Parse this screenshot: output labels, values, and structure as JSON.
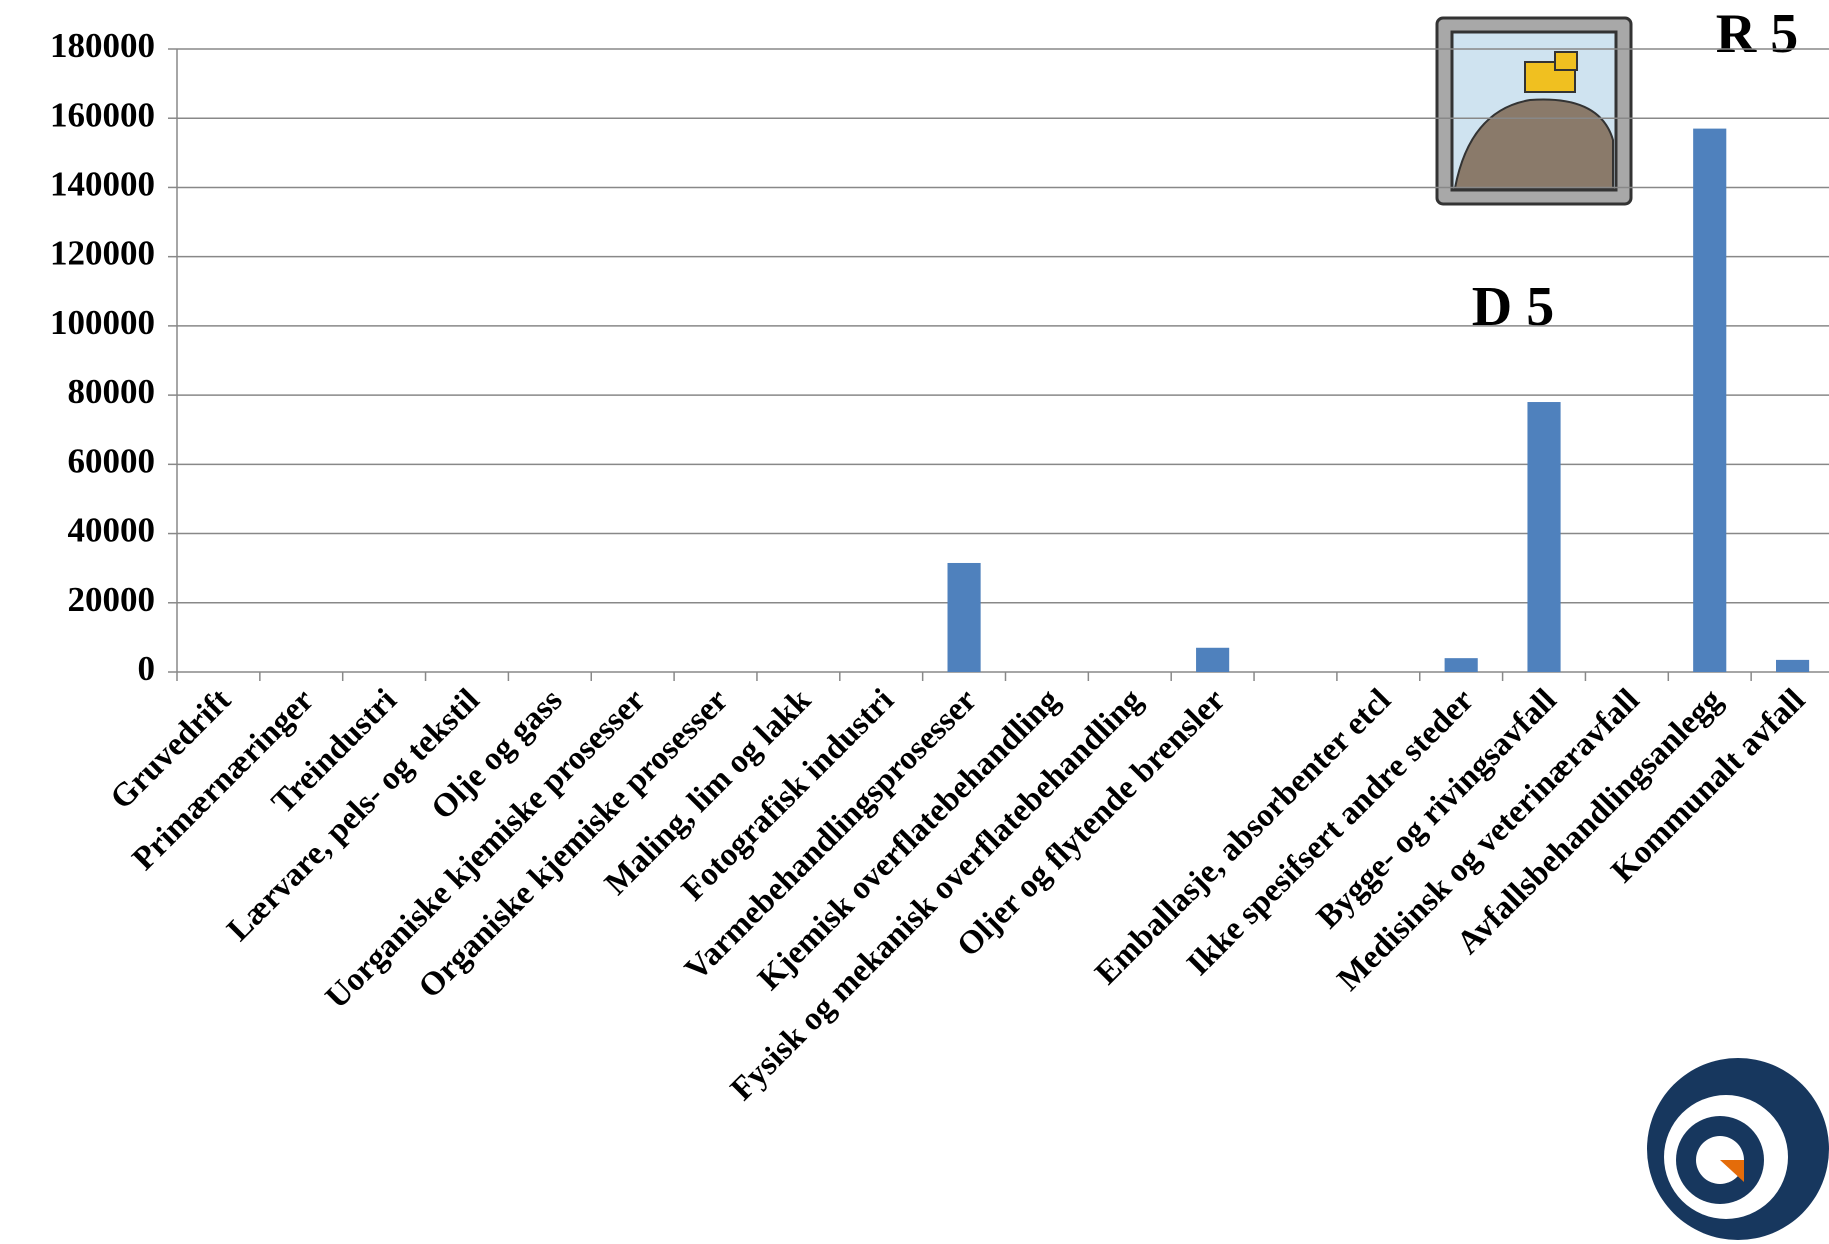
{
  "chart_data": {
    "type": "bar",
    "categories": [
      "Gruvedrift",
      "Primærnæringer",
      "Treindustri",
      "Lærvare, pels- og tekstil",
      "Olje og gass",
      "Uorganiske kjemiske prosesser",
      "Organiske kjemiske prosesser",
      "Maling, lim og lakk",
      "Fotografisk industri",
      "Varmebehandlingsprosesser",
      "Kjemisk overflatebehandling",
      "Fysisk og mekanisk overflatebehandling",
      "Oljer og flytende brensler",
      null,
      "Emballasje, absorbenter etcl",
      "Ikke spesifsert andre steder",
      "Bygge- og rivingsavfall",
      "Medisinsk og veterinæravfall",
      "Avfallsbehandlingsanlegg",
      "Kommunalt avfall"
    ],
    "values": [
      0,
      0,
      0,
      0,
      0,
      0,
      0,
      0,
      0,
      31500,
      0,
      0,
      7000,
      null,
      0,
      4000,
      78000,
      0,
      157000,
      3500
    ],
    "color": "#4f81bd",
    "ylim": [
      0,
      180000
    ],
    "yticks": [
      0,
      20000,
      40000,
      60000,
      80000,
      100000,
      120000,
      140000,
      160000,
      180000
    ],
    "grid": true,
    "annotations": [
      "D 5",
      "R 5"
    ]
  }
}
